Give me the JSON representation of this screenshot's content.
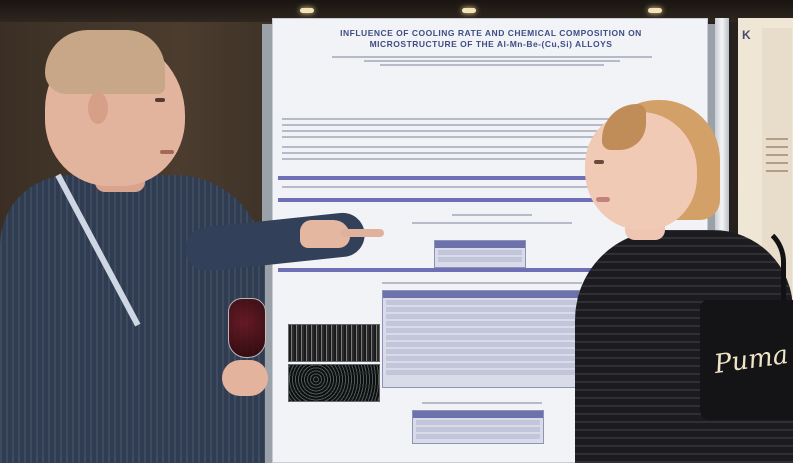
{
  "poster": {
    "title_line1": "INFLUENCE OF COOLING RATE AND CHEMICAL COMPOSITION ON",
    "title_line2": "MICROSTRUCTURE OF THE Al-Mn-Be-(Cu,Si) ALLOYS"
  },
  "bag": {
    "brand": "Puma"
  },
  "right_poster": {
    "letter": "K"
  },
  "colors": {
    "poster_accent": "#6f6fb6",
    "poster_background": "#f2f3f7",
    "man_shirt": "#2f3c52",
    "woman_top": "#1c1b20",
    "woman_hair": "#d3a068"
  }
}
